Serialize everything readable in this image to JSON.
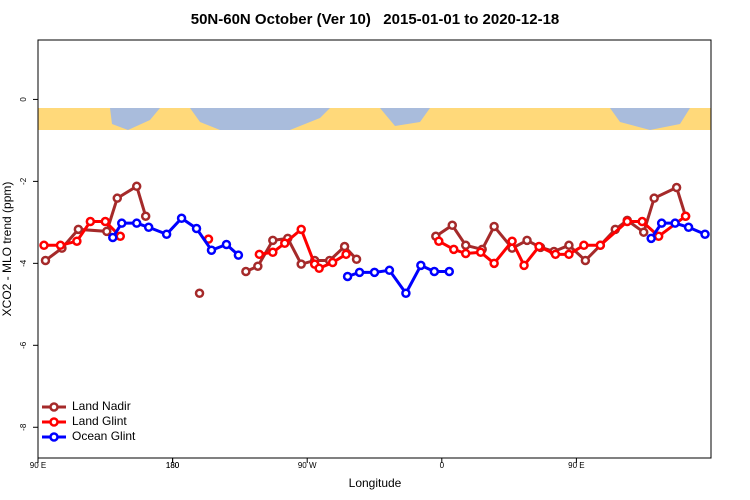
{
  "chart_data": {
    "type": "line",
    "title": "50N-60N October (Ver 10)   2015-01-01 to 2020-12-18",
    "xlabel": "Longitude",
    "ylabel": "XCO2 - MLO trend (ppm)",
    "xlim": [
      90,
      540
    ],
    "ylim": [
      -8.75,
      1.45
    ],
    "xticks": [
      {
        "value": 90,
        "label": "90 E"
      },
      180,
      {
        "value": 270,
        "label": "90 W"
      },
      {
        "value": 360,
        "label": "0"
      },
      {
        "value": 450,
        "label": "90 E"
      },
      180
    ],
    "yticks": [
      0,
      -2,
      -4,
      -6,
      -8
    ],
    "grid": false,
    "legend": "bottom-left",
    "series": [
      {
        "name": "Land Nadir",
        "color": "#a52a2a",
        "x": [
          95,
          106,
          117,
          136,
          143,
          156,
          162,
          null,
          198,
          null,
          229,
          237,
          247,
          257,
          266,
          275,
          285,
          295,
          303,
          null,
          356,
          367,
          376,
          387,
          395,
          407,
          417,
          426,
          435,
          445,
          456,
          466,
          476,
          484,
          495,
          502,
          517,
          523
        ],
        "values": [
          -3.93,
          -3.63,
          -3.17,
          -3.22,
          -2.41,
          -2.12,
          -2.85,
          null,
          -4.73,
          null,
          -4.2,
          -4.07,
          -3.44,
          -3.39,
          -4.02,
          -3.93,
          -3.93,
          -3.59,
          -3.9,
          null,
          -3.34,
          -3.07,
          -3.56,
          -3.66,
          -3.1,
          -3.63,
          -3.44,
          -3.61,
          -3.71,
          -3.56,
          -3.93,
          -3.56,
          -3.17,
          -2.95,
          -3.24,
          -2.41,
          -2.15,
          -2.85
        ]
      },
      {
        "name": "Land Glint",
        "color": "#ff0000",
        "x": [
          94,
          105,
          116,
          125,
          135,
          145,
          null,
          204,
          null,
          238,
          247,
          255,
          266,
          275,
          278,
          287,
          296,
          null,
          358,
          368,
          376,
          386,
          395,
          407,
          415,
          425,
          436,
          445,
          455,
          466,
          484,
          494,
          505,
          523
        ],
        "values": [
          -3.56,
          -3.56,
          -3.46,
          -2.98,
          -2.98,
          -3.34,
          null,
          -3.41,
          null,
          -3.78,
          -3.73,
          -3.51,
          -3.17,
          -4.02,
          -4.12,
          -3.98,
          -3.78,
          null,
          -3.46,
          -3.66,
          -3.76,
          -3.73,
          -4.0,
          -3.46,
          -4.05,
          -3.59,
          -3.78,
          -3.78,
          -3.56,
          -3.56,
          -2.98,
          -2.98,
          -3.34,
          -2.85
        ]
      },
      {
        "name": "Ocean Glint",
        "color": "#0000ff",
        "x": [
          140,
          146,
          156,
          164,
          176,
          186,
          196,
          206,
          216,
          224,
          null,
          297,
          305,
          315,
          325,
          336,
          346,
          355,
          365,
          null,
          500,
          507,
          516,
          525,
          536
        ],
        "values": [
          -3.37,
          -3.02,
          -3.02,
          -3.12,
          -3.29,
          -2.9,
          -3.15,
          -3.68,
          -3.54,
          -3.8,
          null,
          -4.32,
          -4.22,
          -4.22,
          -4.17,
          -4.73,
          -4.05,
          -4.2,
          -4.2,
          null,
          -3.39,
          -3.02,
          -3.02,
          -3.12,
          -3.29
        ]
      }
    ]
  }
}
